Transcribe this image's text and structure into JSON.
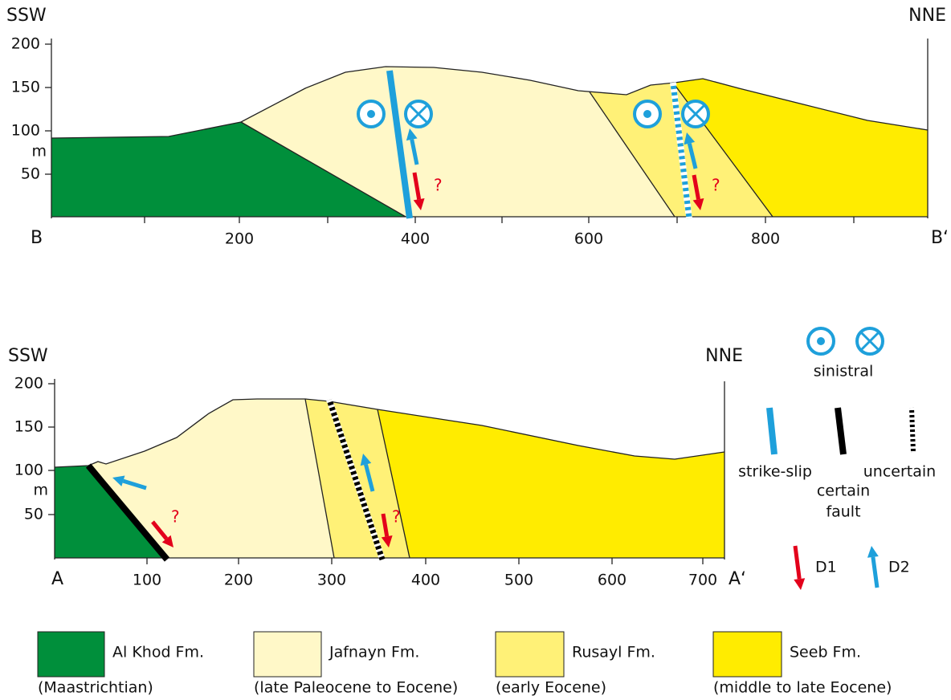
{
  "sections": [
    {
      "left_dir": "SSW",
      "right_dir": "NNE",
      "start": "B",
      "end": "B‘",
      "y_ticks": [
        "200",
        "150",
        "100",
        "50"
      ],
      "y_unit": "m",
      "x_ticks": [
        "200",
        "400",
        "600",
        "800"
      ],
      "queries": [
        "?",
        "?"
      ]
    },
    {
      "left_dir": "SSW",
      "right_dir": "NNE",
      "start": "A",
      "end": "A‘",
      "y_ticks": [
        "200",
        "150",
        "100",
        "50"
      ],
      "y_unit": "m",
      "x_ticks": [
        "100",
        "200",
        "300",
        "400",
        "500",
        "600",
        "700"
      ],
      "queries": [
        "?",
        "?"
      ]
    }
  ],
  "legend": {
    "sinistral": "sinistral",
    "strike_slip": "strike-slip",
    "certain_fault": [
      "certain",
      "fault"
    ],
    "uncertain": "uncertain",
    "d1": "D1",
    "d2": "D2",
    "formations": [
      {
        "name": "Al Khod Fm.",
        "age": "(Maastrichtian)"
      },
      {
        "name": "Jafnayn Fm.",
        "age": "(late Paleocene to Eocene)"
      },
      {
        "name": "Rusayl Fm.",
        "age": "(early Eocene)"
      },
      {
        "name": "Seeb Fm.",
        "age": "(middle to late Eocene)"
      }
    ]
  }
}
